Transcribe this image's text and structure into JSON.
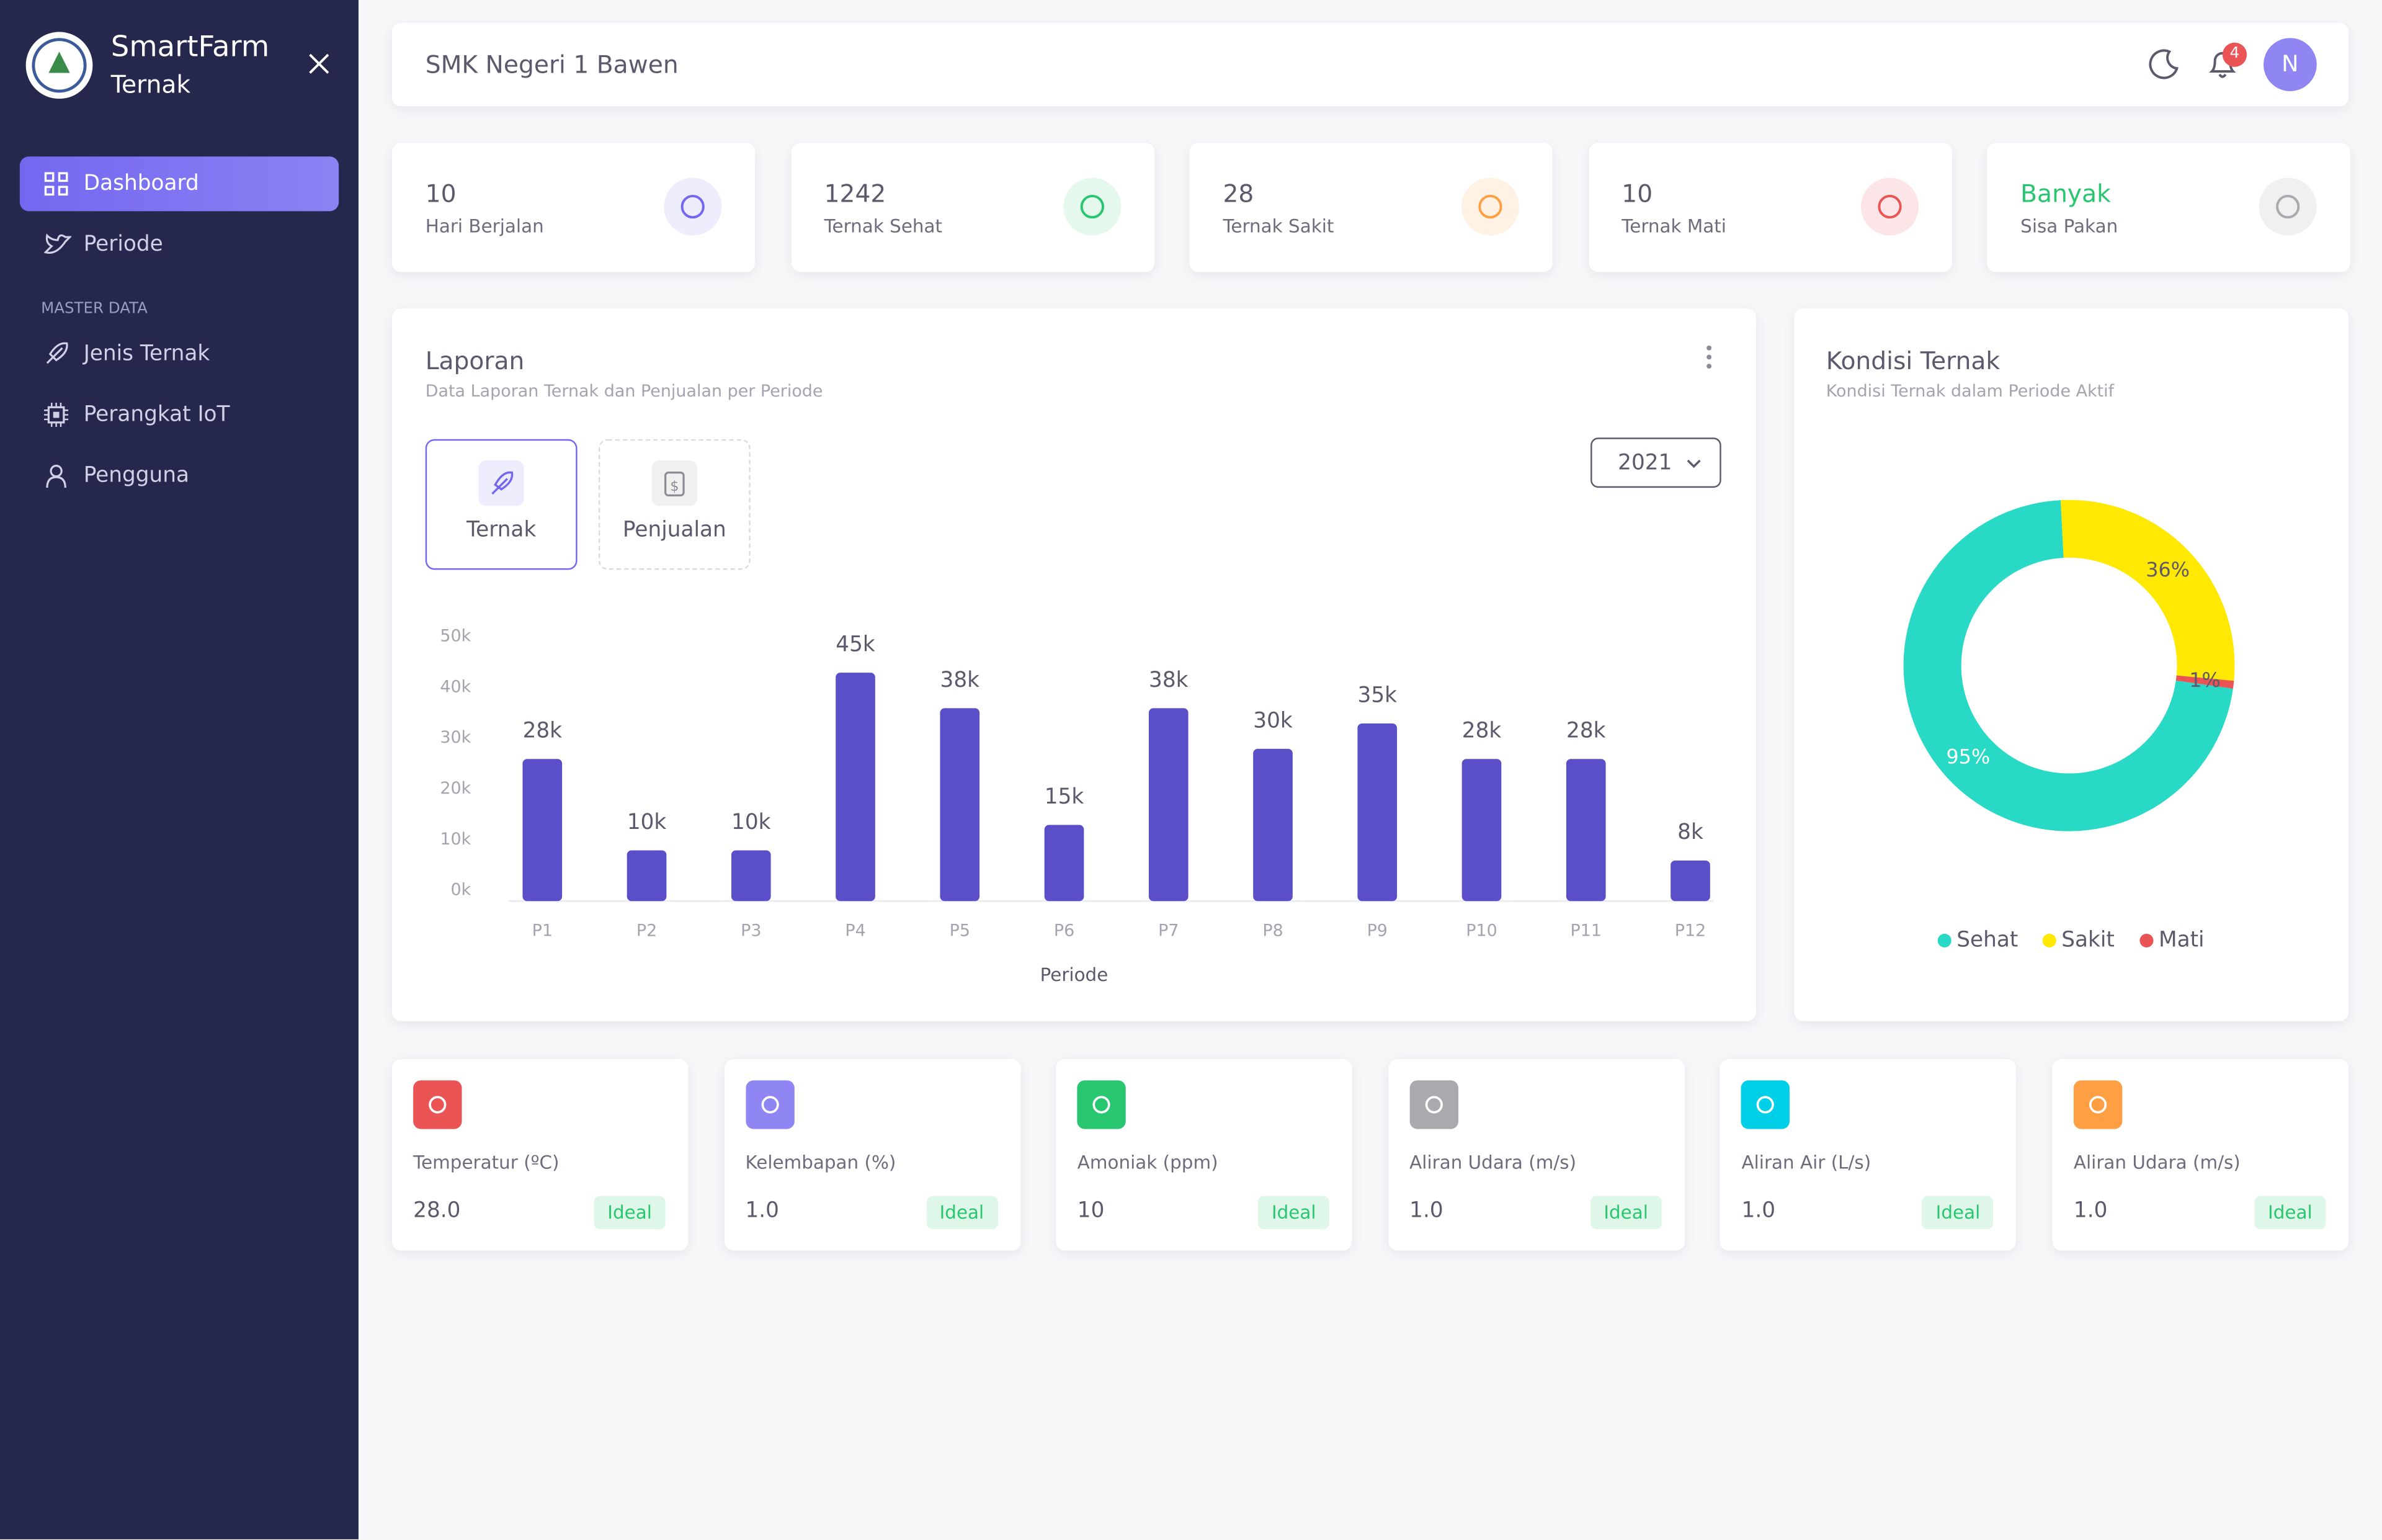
{
  "sidebar": {
    "brand": "SmartFarm",
    "subtitle": "Ternak",
    "menu": [
      "Dashboard",
      "Periode"
    ],
    "section": "MASTER DATA",
    "master": [
      "Jenis Ternak",
      "Perangkat IoT",
      "Pengguna"
    ]
  },
  "header": {
    "school": "SMK Negeri 1 Bawen",
    "notifications": 4,
    "avatar": "N"
  },
  "stats": [
    {
      "value": 10,
      "label": "Hari Berjalan"
    },
    {
      "value": 1242,
      "label": "Ternak Sehat"
    },
    {
      "value": 28,
      "label": "Ternak Sakit"
    },
    {
      "value": 10,
      "label": "Ternak Mati"
    },
    {
      "value": "Banyak",
      "label": "Sisa Pakan"
    }
  ],
  "tabs": [
    "Ternak",
    "Penjualan"
  ],
  "year": "2021",
  "chart_data": [
    {
      "type": "bar",
      "title": "Laporan",
      "subtitle": "Data Laporan Ternak dan Penjualan per Periode",
      "x_label": "Periode",
      "categories": [
        "P1",
        "P2",
        "P3",
        "P4",
        "P5",
        "P6",
        "P7",
        "P8",
        "P9",
        "P10",
        "P11",
        "P12"
      ],
      "values": [
        28000,
        10000,
        10000,
        45000,
        38000,
        15000,
        38000,
        30000,
        35000,
        28000,
        28000,
        8000
      ],
      "value_labels": [
        "28k",
        "10k",
        "10k",
        "45k",
        "38k",
        "15k",
        "38k",
        "30k",
        "35k",
        "28k",
        "28k",
        "8k"
      ],
      "color": "#5b4ec9",
      "ylim": [
        0,
        50000
      ],
      "yticks": [
        {
          "value": 0,
          "label": "0k"
        },
        {
          "value": 10000,
          "label": "10k"
        },
        {
          "value": 20000,
          "label": "20k"
        },
        {
          "value": 30000,
          "label": "30k"
        },
        {
          "value": 40000,
          "label": "40k"
        },
        {
          "value": 50000,
          "label": "50k"
        }
      ],
      "grid": false
    },
    {
      "type": "pie",
      "title": "Kondisi Ternak",
      "subtitle": "Kondisi Ternak dalam Periode Aktif",
      "categories": [
        "Sehat",
        "Sakit",
        "Mati"
      ],
      "values": [
        95,
        36,
        1
      ],
      "value_labels": [
        "95%",
        "36%",
        "1%"
      ],
      "colors": [
        "#28dac6",
        "#ffe802",
        "#ea5455"
      ]
    }
  ],
  "sensors": [
    {
      "label": "Temperatur (ºC)",
      "value": "28.0",
      "status": "Ideal"
    },
    {
      "label": "Kelembapan (%)",
      "value": "1.0",
      "status": "Ideal"
    },
    {
      "label": "Amoniak (ppm)",
      "value": "10",
      "status": "Ideal"
    },
    {
      "label": "Aliran Udara (m/s)",
      "value": "1.0",
      "status": "Ideal"
    },
    {
      "label": "Aliran Air (L/s)",
      "value": "1.0",
      "status": "Ideal"
    },
    {
      "label": "Aliran Udara (m/s)",
      "value": "1.0",
      "status": "Ideal"
    }
  ]
}
